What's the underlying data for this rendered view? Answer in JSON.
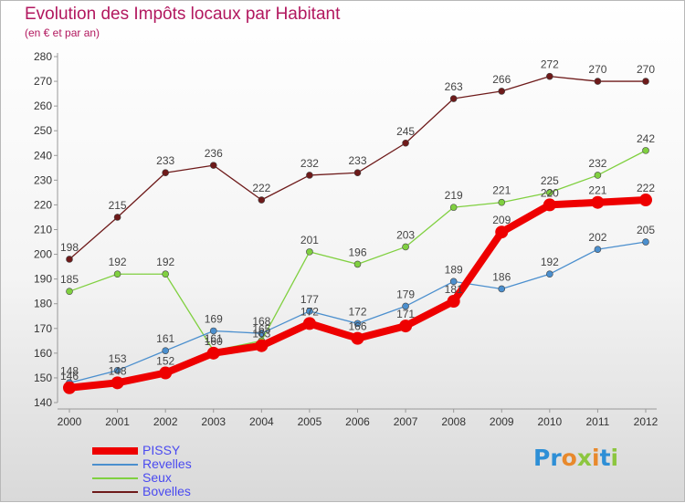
{
  "title": "Evolution des Impôts locaux par Habitant",
  "subtitle": "(en € et par an)",
  "logo_text": "Proxiti",
  "chart_data": {
    "type": "line",
    "x": [
      2000,
      2001,
      2002,
      2003,
      2004,
      2005,
      2006,
      2007,
      2008,
      2009,
      2010,
      2011,
      2012
    ],
    "ylim": [
      140,
      280
    ],
    "yticks": [
      140,
      150,
      160,
      170,
      180,
      190,
      200,
      210,
      220,
      230,
      240,
      250,
      260,
      270,
      280
    ],
    "grid": false,
    "legend_position": "bottom-left",
    "series": [
      {
        "name": "PISSY",
        "color": "#ee0000",
        "values": [
          146,
          148,
          152,
          160,
          163,
          172,
          166,
          171,
          181,
          209,
          220,
          221,
          222
        ],
        "labels": [
          "146",
          "148",
          "152",
          "160",
          "163",
          "172",
          "166",
          "171",
          "181",
          "209",
          "220",
          "221",
          "222"
        ]
      },
      {
        "name": "Revelles",
        "color": "#4b8fce",
        "values": [
          148,
          153,
          161,
          169,
          168,
          177,
          172,
          179,
          189,
          186,
          192,
          202,
          205
        ],
        "labels": [
          "148",
          "153",
          "161",
          "169",
          "168",
          "177",
          "172",
          "179",
          "189",
          "186",
          "192",
          "202",
          "205"
        ]
      },
      {
        "name": "Seux",
        "color": "#80d040",
        "values": [
          185,
          192,
          192,
          161,
          165,
          201,
          196,
          203,
          219,
          221,
          225,
          232,
          242
        ],
        "labels": [
          "185",
          "192",
          "192",
          "161",
          "165",
          "201",
          "196",
          "203",
          "219",
          "221",
          "225",
          "232",
          "242"
        ]
      },
      {
        "name": "Bovelles",
        "color": "#6e1a1a",
        "values": [
          198,
          215,
          233,
          236,
          222,
          232,
          233,
          245,
          263,
          266,
          272,
          270,
          270
        ],
        "labels": [
          "198",
          "215",
          "233",
          "236",
          "222",
          "232",
          "233",
          "245",
          "263",
          "266",
          "272",
          "270",
          "270"
        ]
      }
    ]
  }
}
